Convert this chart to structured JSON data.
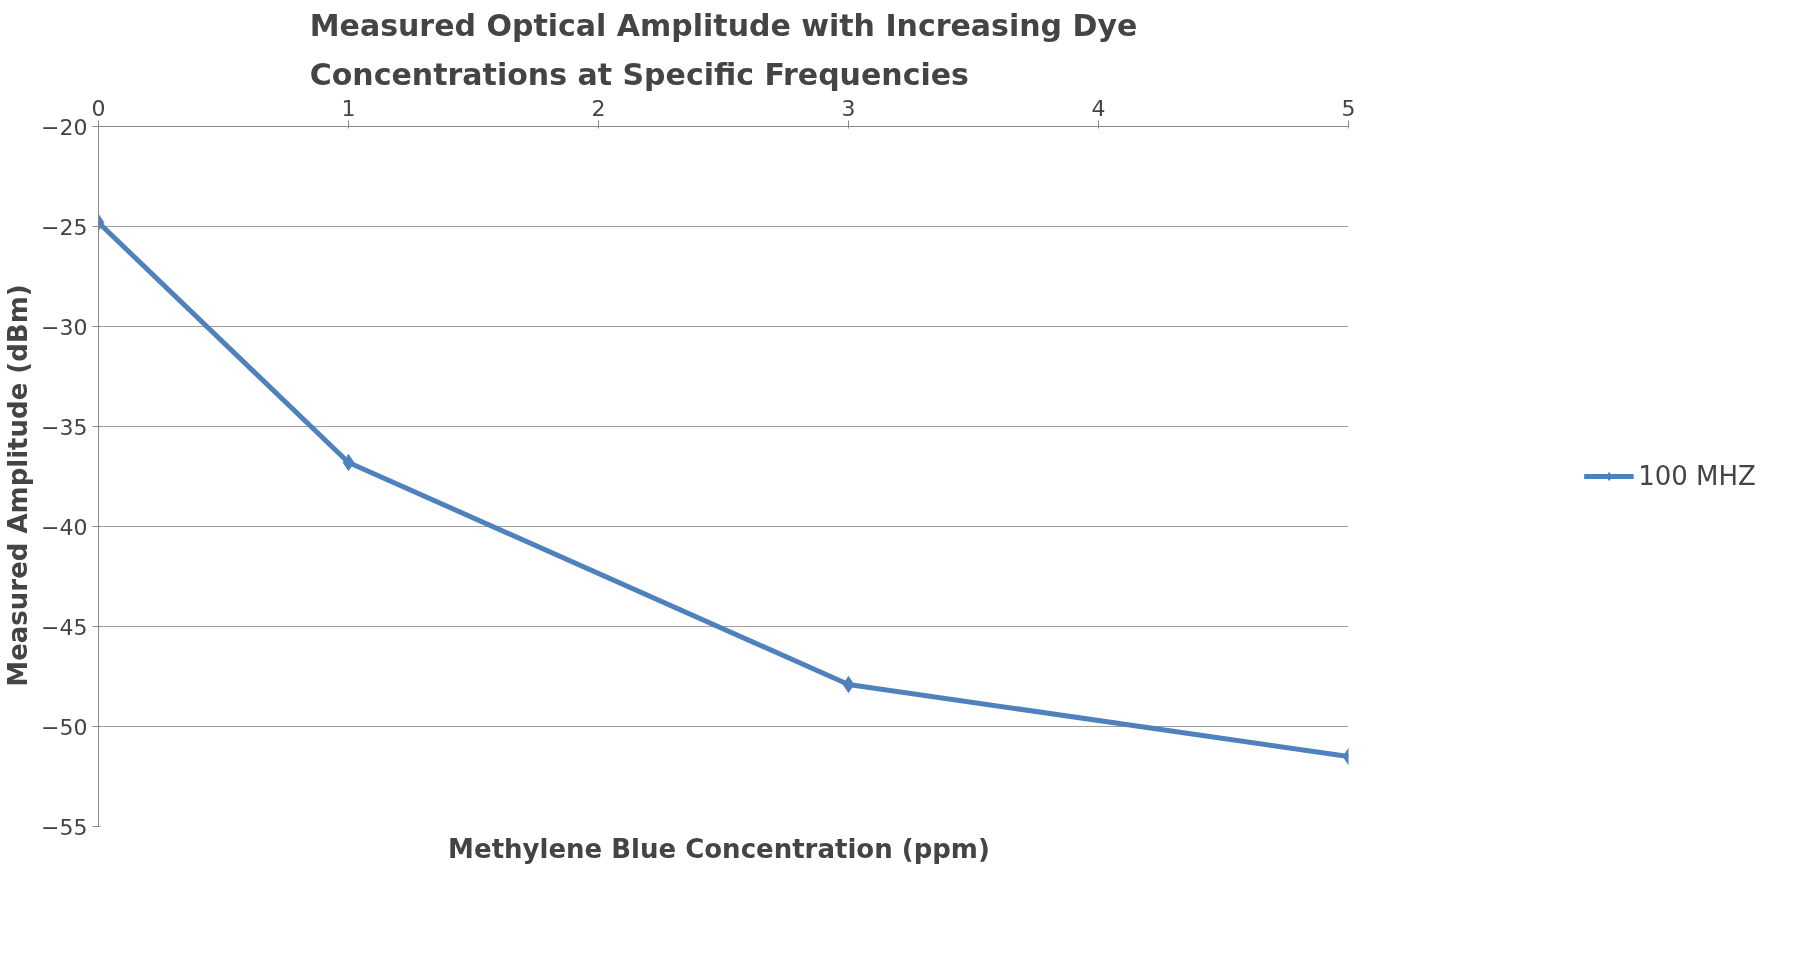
{
  "chart_data": {
    "type": "line",
    "title": "Measured Optical Amplitude with Increasing Dye\nConcentrations at Specific Frequencies",
    "xlabel": "Methylene Blue Concentration  (ppm)",
    "ylabel": "Measured  Amplitude  (dBm)",
    "x": [
      0,
      1,
      3,
      5
    ],
    "series": [
      {
        "name": "100 MHZ",
        "color": "#4f81bd",
        "values": [
          -24.8,
          -36.8,
          -47.9,
          -51.5
        ]
      }
    ],
    "xlim": [
      0,
      5
    ],
    "xticks": [
      0,
      1,
      2,
      3,
      4,
      5
    ],
    "ylim": [
      -55,
      -20
    ],
    "yticks": [
      -55,
      -50,
      -45,
      -40,
      -35,
      -30,
      -25,
      -20
    ],
    "grid": "y",
    "legend": "right",
    "marker": "diamond",
    "line_style": "solid"
  }
}
